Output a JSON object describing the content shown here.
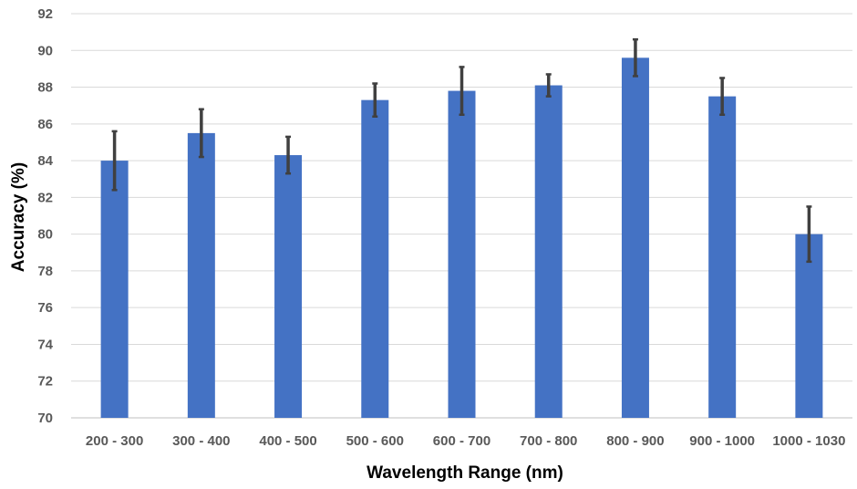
{
  "chart_data": {
    "type": "bar",
    "title": "",
    "xlabel": "Wavelength Range (nm)",
    "ylabel": "Accuracy (%)",
    "ylim": [
      70,
      92
    ],
    "yticks": [
      "70",
      "72",
      "74",
      "76",
      "78",
      "80",
      "82",
      "84",
      "86",
      "88",
      "90",
      "92"
    ],
    "grid": true,
    "legend": "none",
    "bar_color": "#4472C4",
    "error_color": "#404040",
    "categories": [
      "200 - 300",
      "300 - 400",
      "400 - 500",
      "500 - 600",
      "600 - 700",
      "700 - 800",
      "800 - 900",
      "900 - 1000",
      "1000 - 1030"
    ],
    "values": [
      84.0,
      85.5,
      84.3,
      87.3,
      87.8,
      88.1,
      89.6,
      87.5,
      80.0
    ],
    "errors": [
      1.6,
      1.3,
      1.0,
      0.9,
      1.3,
      0.6,
      1.0,
      1.0,
      1.5
    ]
  }
}
